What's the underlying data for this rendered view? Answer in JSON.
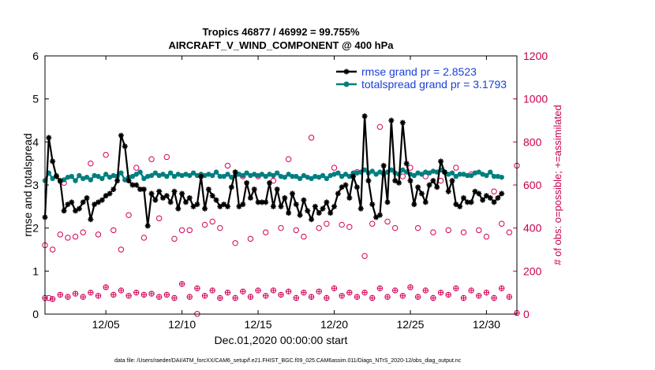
{
  "colors": {
    "rmse": "#000000",
    "spread": "#007f7f",
    "obs": "#d4005a",
    "legend_text": "#1a3fd8",
    "right_axis": "#c8004e"
  },
  "chart_data": {
    "type": "line",
    "title": "Tropics 46877 / 46992 = 99.755%",
    "subtitle": "AIRCRAFT_V_WIND_COMPONENT @ 400 hPa",
    "xlabel": "Dec.01,2020 00:00:00 start",
    "ylabel": "rmse and totalspread",
    "ylabel_right": "# of obs: o=possible; +=assimilated",
    "xlim": [
      1,
      32
    ],
    "ylim": [
      0,
      6
    ],
    "ylim_right": [
      0,
      1200
    ],
    "yticks": [
      "0",
      "1",
      "2",
      "3",
      "4",
      "5",
      "6"
    ],
    "yticks_right": [
      "0",
      "200",
      "400",
      "600",
      "800",
      "1000",
      "1200"
    ],
    "xticks": [
      {
        "x": 5,
        "label": "12/05"
      },
      {
        "x": 10,
        "label": "12/10"
      },
      {
        "x": 15,
        "label": "12/15"
      },
      {
        "x": 20,
        "label": "12/20"
      },
      {
        "x": 25,
        "label": "12/25"
      },
      {
        "x": 30,
        "label": "12/30"
      }
    ],
    "legend": [
      {
        "label": "rmse grand pr = 2.8523",
        "series": "rmse"
      },
      {
        "label": "totalspread grand pr = 3.1793",
        "series": "spread"
      }
    ],
    "step": 0.25,
    "x_start": 1.0,
    "series": [
      {
        "name": "rmse",
        "marker": "star",
        "values": [
          2.25,
          4.1,
          3.55,
          3.2,
          3.1,
          2.4,
          2.55,
          2.6,
          2.4,
          2.45,
          2.6,
          2.7,
          2.2,
          2.55,
          2.6,
          2.65,
          2.75,
          2.8,
          2.9,
          3.1,
          4.15,
          3.9,
          3.1,
          3.0,
          3.0,
          2.9,
          2.9,
          2.05,
          2.8,
          2.65,
          2.85,
          2.7,
          2.75,
          2.6,
          2.85,
          2.45,
          2.8,
          2.6,
          2.7,
          2.5,
          2.55,
          3.2,
          2.45,
          2.9,
          2.75,
          2.65,
          2.5,
          2.55,
          2.5,
          2.95,
          3.3,
          2.5,
          2.55,
          3.05,
          2.7,
          2.9,
          2.6,
          2.6,
          2.6,
          3.05,
          2.5,
          2.9,
          2.5,
          2.7,
          2.35,
          2.8,
          2.55,
          2.3,
          2.65,
          2.4,
          2.2,
          2.5,
          2.35,
          2.45,
          2.6,
          2.35,
          2.5,
          2.8,
          2.95,
          3.0,
          2.7,
          3.2,
          2.95,
          2.45,
          4.6,
          3.1,
          2.55,
          2.25,
          2.3,
          3.45,
          2.6,
          4.5,
          3.1,
          3.05,
          4.45,
          3.5,
          3.1,
          2.55,
          2.95,
          2.8,
          2.6,
          3.0,
          3.1,
          2.95,
          3.55,
          3.3,
          2.85,
          3.1,
          2.55,
          2.5,
          2.7,
          2.6,
          2.6,
          2.85,
          2.8,
          2.65,
          2.75,
          2.7,
          2.6,
          2.7,
          2.8
        ]
      },
      {
        "name": "totalspread",
        "marker": "circle",
        "values": [
          3.1,
          3.28,
          3.15,
          3.22,
          3.08,
          3.12,
          3.18,
          3.2,
          3.1,
          3.22,
          3.15,
          3.18,
          3.12,
          3.22,
          3.2,
          3.15,
          3.25,
          3.18,
          3.22,
          3.2,
          3.28,
          3.12,
          3.18,
          3.2,
          3.25,
          3.3,
          3.15,
          3.2,
          3.22,
          3.28,
          3.22,
          3.25,
          3.2,
          3.28,
          3.2,
          3.25,
          3.22,
          3.25,
          3.22,
          3.28,
          3.22,
          3.25,
          3.22,
          3.25,
          3.22,
          3.3,
          3.2,
          3.2,
          3.25,
          3.18,
          3.22,
          3.25,
          3.22,
          3.28,
          3.22,
          3.25,
          3.22,
          3.25,
          3.2,
          3.25,
          3.22,
          3.28,
          3.2,
          3.18,
          3.25,
          3.2,
          3.2,
          3.15,
          3.22,
          3.18,
          3.15,
          3.2,
          3.18,
          3.22,
          3.15,
          3.22,
          3.25,
          3.28,
          3.2,
          3.25,
          3.2,
          3.28,
          3.28,
          3.3,
          3.35,
          3.28,
          3.32,
          3.25,
          3.3,
          3.25,
          3.3,
          3.35,
          3.28,
          3.25,
          3.35,
          3.3,
          3.25,
          3.22,
          3.28,
          3.25,
          3.3,
          3.28,
          3.32,
          3.3,
          3.35,
          3.3,
          3.25,
          3.28,
          3.2,
          3.25,
          3.25,
          3.22,
          3.22,
          3.28,
          3.3,
          3.25,
          3.22,
          3.3,
          3.2,
          3.2,
          3.18
        ]
      },
      {
        "name": "obs_possible",
        "marker": "open-circle",
        "x": [
          1,
          1.25,
          1.5,
          2,
          2.25,
          2.5,
          3,
          3.5,
          4,
          4.5,
          5,
          5.5,
          6,
          6.5,
          7,
          7.5,
          8,
          8.5,
          9,
          9.5,
          10,
          10.5,
          11,
          11.5,
          12,
          12.5,
          13,
          13.5,
          14,
          14.5,
          15,
          15.5,
          16,
          16.5,
          17,
          17.5,
          18,
          18.5,
          19,
          19.5,
          20,
          20.5,
          21,
          21.5,
          22,
          22.5,
          23,
          23.5,
          24,
          24.5,
          25,
          25.5,
          26,
          26.5,
          27,
          27.5,
          28,
          28.5,
          29,
          29.5,
          30,
          30.5,
          31,
          31.5,
          32
        ],
        "values": [
          320,
          75,
          300,
          370,
          610,
          355,
          360,
          380,
          700,
          370,
          740,
          390,
          300,
          460,
          680,
          355,
          720,
          445,
          730,
          350,
          390,
          390,
          1,
          415,
          430,
          400,
          690,
          330,
          640,
          350,
          640,
          380,
          620,
          400,
          720,
          390,
          360,
          820,
          400,
          420,
          680,
          415,
          405,
          660,
          270,
          420,
          870,
          430,
          400,
          640,
          680,
          400,
          640,
          380,
          620,
          390,
          680,
          380,
          650,
          390,
          360,
          570,
          420,
          380,
          690
        ]
      },
      {
        "name": "obs_assimilated",
        "marker": "plus",
        "x": [
          1,
          1.5,
          2,
          2.5,
          3,
          3.5,
          4,
          4.5,
          5,
          5.5,
          6,
          6.5,
          7,
          7.5,
          8,
          8.5,
          9,
          9.5,
          10,
          10.5,
          11,
          11.5,
          12,
          12.5,
          13,
          13.5,
          14,
          14.5,
          15,
          15.5,
          16,
          16.5,
          17,
          17.5,
          18,
          18.5,
          19,
          19.5,
          20,
          20.5,
          21,
          21.5,
          22,
          22.5,
          23,
          23.5,
          24,
          24.5,
          25,
          25.5,
          26,
          26.5,
          27,
          27.5,
          28,
          28.5,
          29,
          29.5,
          30,
          30.5,
          31,
          31.5,
          32
        ],
        "values": [
          75,
          70,
          90,
          80,
          95,
          80,
          100,
          85,
          125,
          90,
          110,
          85,
          100,
          90,
          95,
          80,
          90,
          75,
          140,
          80,
          120,
          85,
          110,
          75,
          100,
          75,
          105,
          80,
          110,
          85,
          110,
          90,
          105,
          75,
          100,
          80,
          105,
          75,
          120,
          85,
          100,
          80,
          100,
          75,
          120,
          80,
          110,
          85,
          125,
          80,
          110,
          75,
          100,
          90,
          120,
          75,
          110,
          85,
          100,
          75,
          120,
          80,
          5
        ]
      }
    ]
  },
  "footer": "data file: /Users/raeder/DAI/ATM_forcXX/CAM6_setup/f.e21.FHIST_BGC.f09_025.CAM6assim.011/Diags_NTrS_2020-12/obs_diag_output.nc"
}
